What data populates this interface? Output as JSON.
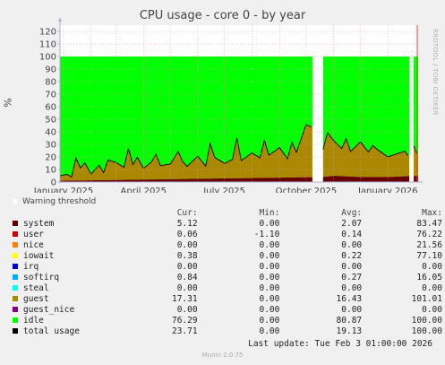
{
  "title": "CPU usage - core 0 - by year",
  "ylabel": "%",
  "watermark": "RRDTOOL / TOBI OETIKER",
  "warning_label": "Warning threshold",
  "headers": {
    "cur": "Cur:",
    "min": "Min:",
    "avg": "Avg:",
    "max": "Max:"
  },
  "rows": [
    {
      "name": "system",
      "color": "#660000",
      "cur": "5.12",
      "min": "0.00",
      "avg": "2.07",
      "max": "83.47"
    },
    {
      "name": "user",
      "color": "#cc0000",
      "cur": "0.06",
      "min": "-1.10",
      "avg": "0.14",
      "max": "76.22"
    },
    {
      "name": "nice",
      "color": "#ff8000",
      "cur": "0.00",
      "min": "0.00",
      "avg": "0.00",
      "max": "21.56"
    },
    {
      "name": "iowait",
      "color": "#ffff00",
      "cur": "0.38",
      "min": "0.00",
      "avg": "0.22",
      "max": "77.10"
    },
    {
      "name": "irq",
      "color": "#0000cc",
      "cur": "0.00",
      "min": "0.00",
      "avg": "0.00",
      "max": "0.00"
    },
    {
      "name": "softirq",
      "color": "#00aaff",
      "cur": "0.84",
      "min": "0.00",
      "avg": "0.27",
      "max": "16.05"
    },
    {
      "name": "steal",
      "color": "#00ffff",
      "cur": "0.00",
      "min": "0.00",
      "avg": "0.00",
      "max": "0.00"
    },
    {
      "name": "guest",
      "color": "#aa8800",
      "cur": "17.31",
      "min": "0.00",
      "avg": "16.43",
      "max": "101.01"
    },
    {
      "name": "guest_nice",
      "color": "#880088",
      "cur": "0.00",
      "min": "0.00",
      "avg": "0.00",
      "max": "0.00"
    },
    {
      "name": "idle",
      "color": "#00ff00",
      "cur": "76.29",
      "min": "0.00",
      "avg": "80.87",
      "max": "100.00"
    },
    {
      "name": "total usage",
      "color": "#000000",
      "cur": "23.71",
      "min": "0.00",
      "avg": "19.13",
      "max": "100.00"
    }
  ],
  "footer": "Last update: Tue Feb  3 01:00:00 2026",
  "munin": "Munin 2.0.75",
  "chart_data": {
    "type": "area",
    "title": "CPU usage - core 0 - by year",
    "ylabel": "%",
    "ylim": [
      0,
      125
    ],
    "yticks": [
      0,
      10,
      20,
      30,
      40,
      50,
      60,
      70,
      80,
      90,
      100,
      110,
      120
    ],
    "xlim": [
      "2024-12-28",
      "2026-02-03"
    ],
    "xticks": [
      {
        "label": "January 2025",
        "date": "2025-01-01"
      },
      {
        "label": "April 2025",
        "date": "2025-04-01"
      },
      {
        "label": "July 2025",
        "date": "2025-07-01"
      },
      {
        "label": "October 2025",
        "date": "2025-10-01"
      },
      {
        "label": "January 2026",
        "date": "2026-01-01"
      }
    ],
    "grid": true,
    "data_start": "2024-12-28",
    "data_end": "2026-02-03",
    "gaps": [
      [
        "2025-10-08",
        "2025-10-19"
      ],
      [
        "2026-01-25",
        "2026-01-29"
      ]
    ],
    "series": [
      {
        "name": "guest",
        "x": [
          "2024-12-28",
          "2025-01-05",
          "2025-01-10",
          "2025-01-15",
          "2025-01-20",
          "2025-01-25",
          "2025-02-01",
          "2025-02-10",
          "2025-02-15",
          "2025-02-20",
          "2025-03-01",
          "2025-03-10",
          "2025-03-15",
          "2025-03-20",
          "2025-03-25",
          "2025-04-01",
          "2025-04-10",
          "2025-04-15",
          "2025-04-20",
          "2025-05-01",
          "2025-05-10",
          "2025-05-15",
          "2025-05-20",
          "2025-06-01",
          "2025-06-10",
          "2025-06-15",
          "2025-06-20",
          "2025-07-01",
          "2025-07-10",
          "2025-07-15",
          "2025-07-20",
          "2025-08-01",
          "2025-08-10",
          "2025-08-15",
          "2025-08-20",
          "2025-09-01",
          "2025-09-10",
          "2025-09-15",
          "2025-09-20",
          "2025-09-25",
          "2025-10-01",
          "2025-10-07",
          "2025-10-20",
          "2025-10-25",
          "2025-11-01",
          "2025-11-10",
          "2025-11-15",
          "2025-11-20",
          "2025-12-01",
          "2025-12-10",
          "2025-12-15",
          "2025-12-20",
          "2026-01-01",
          "2026-01-10",
          "2026-01-20",
          "2026-01-24",
          "2026-01-30",
          "2026-02-03"
        ],
        "values": [
          4,
          5,
          3,
          18,
          10,
          14,
          5,
          12,
          6,
          16,
          14,
          10,
          25,
          12,
          18,
          9,
          14,
          20,
          11,
          12,
          22,
          14,
          10,
          18,
          10,
          28,
          17,
          12,
          15,
          32,
          14,
          20,
          16,
          30,
          18,
          24,
          15,
          28,
          20,
          30,
          42,
          40,
          22,
          35,
          28,
          22,
          30,
          20,
          28,
          20,
          25,
          22,
          16,
          18,
          20,
          16,
          24,
          17
        ]
      },
      {
        "name": "system",
        "x": [
          "2024-12-28",
          "2025-10-20",
          "2025-11-01",
          "2025-12-01",
          "2026-01-01",
          "2026-02-03"
        ],
        "values": [
          1,
          4,
          5,
          4,
          4,
          5
        ]
      },
      {
        "name": "idle",
        "values_note": "remainder to 100"
      }
    ]
  }
}
